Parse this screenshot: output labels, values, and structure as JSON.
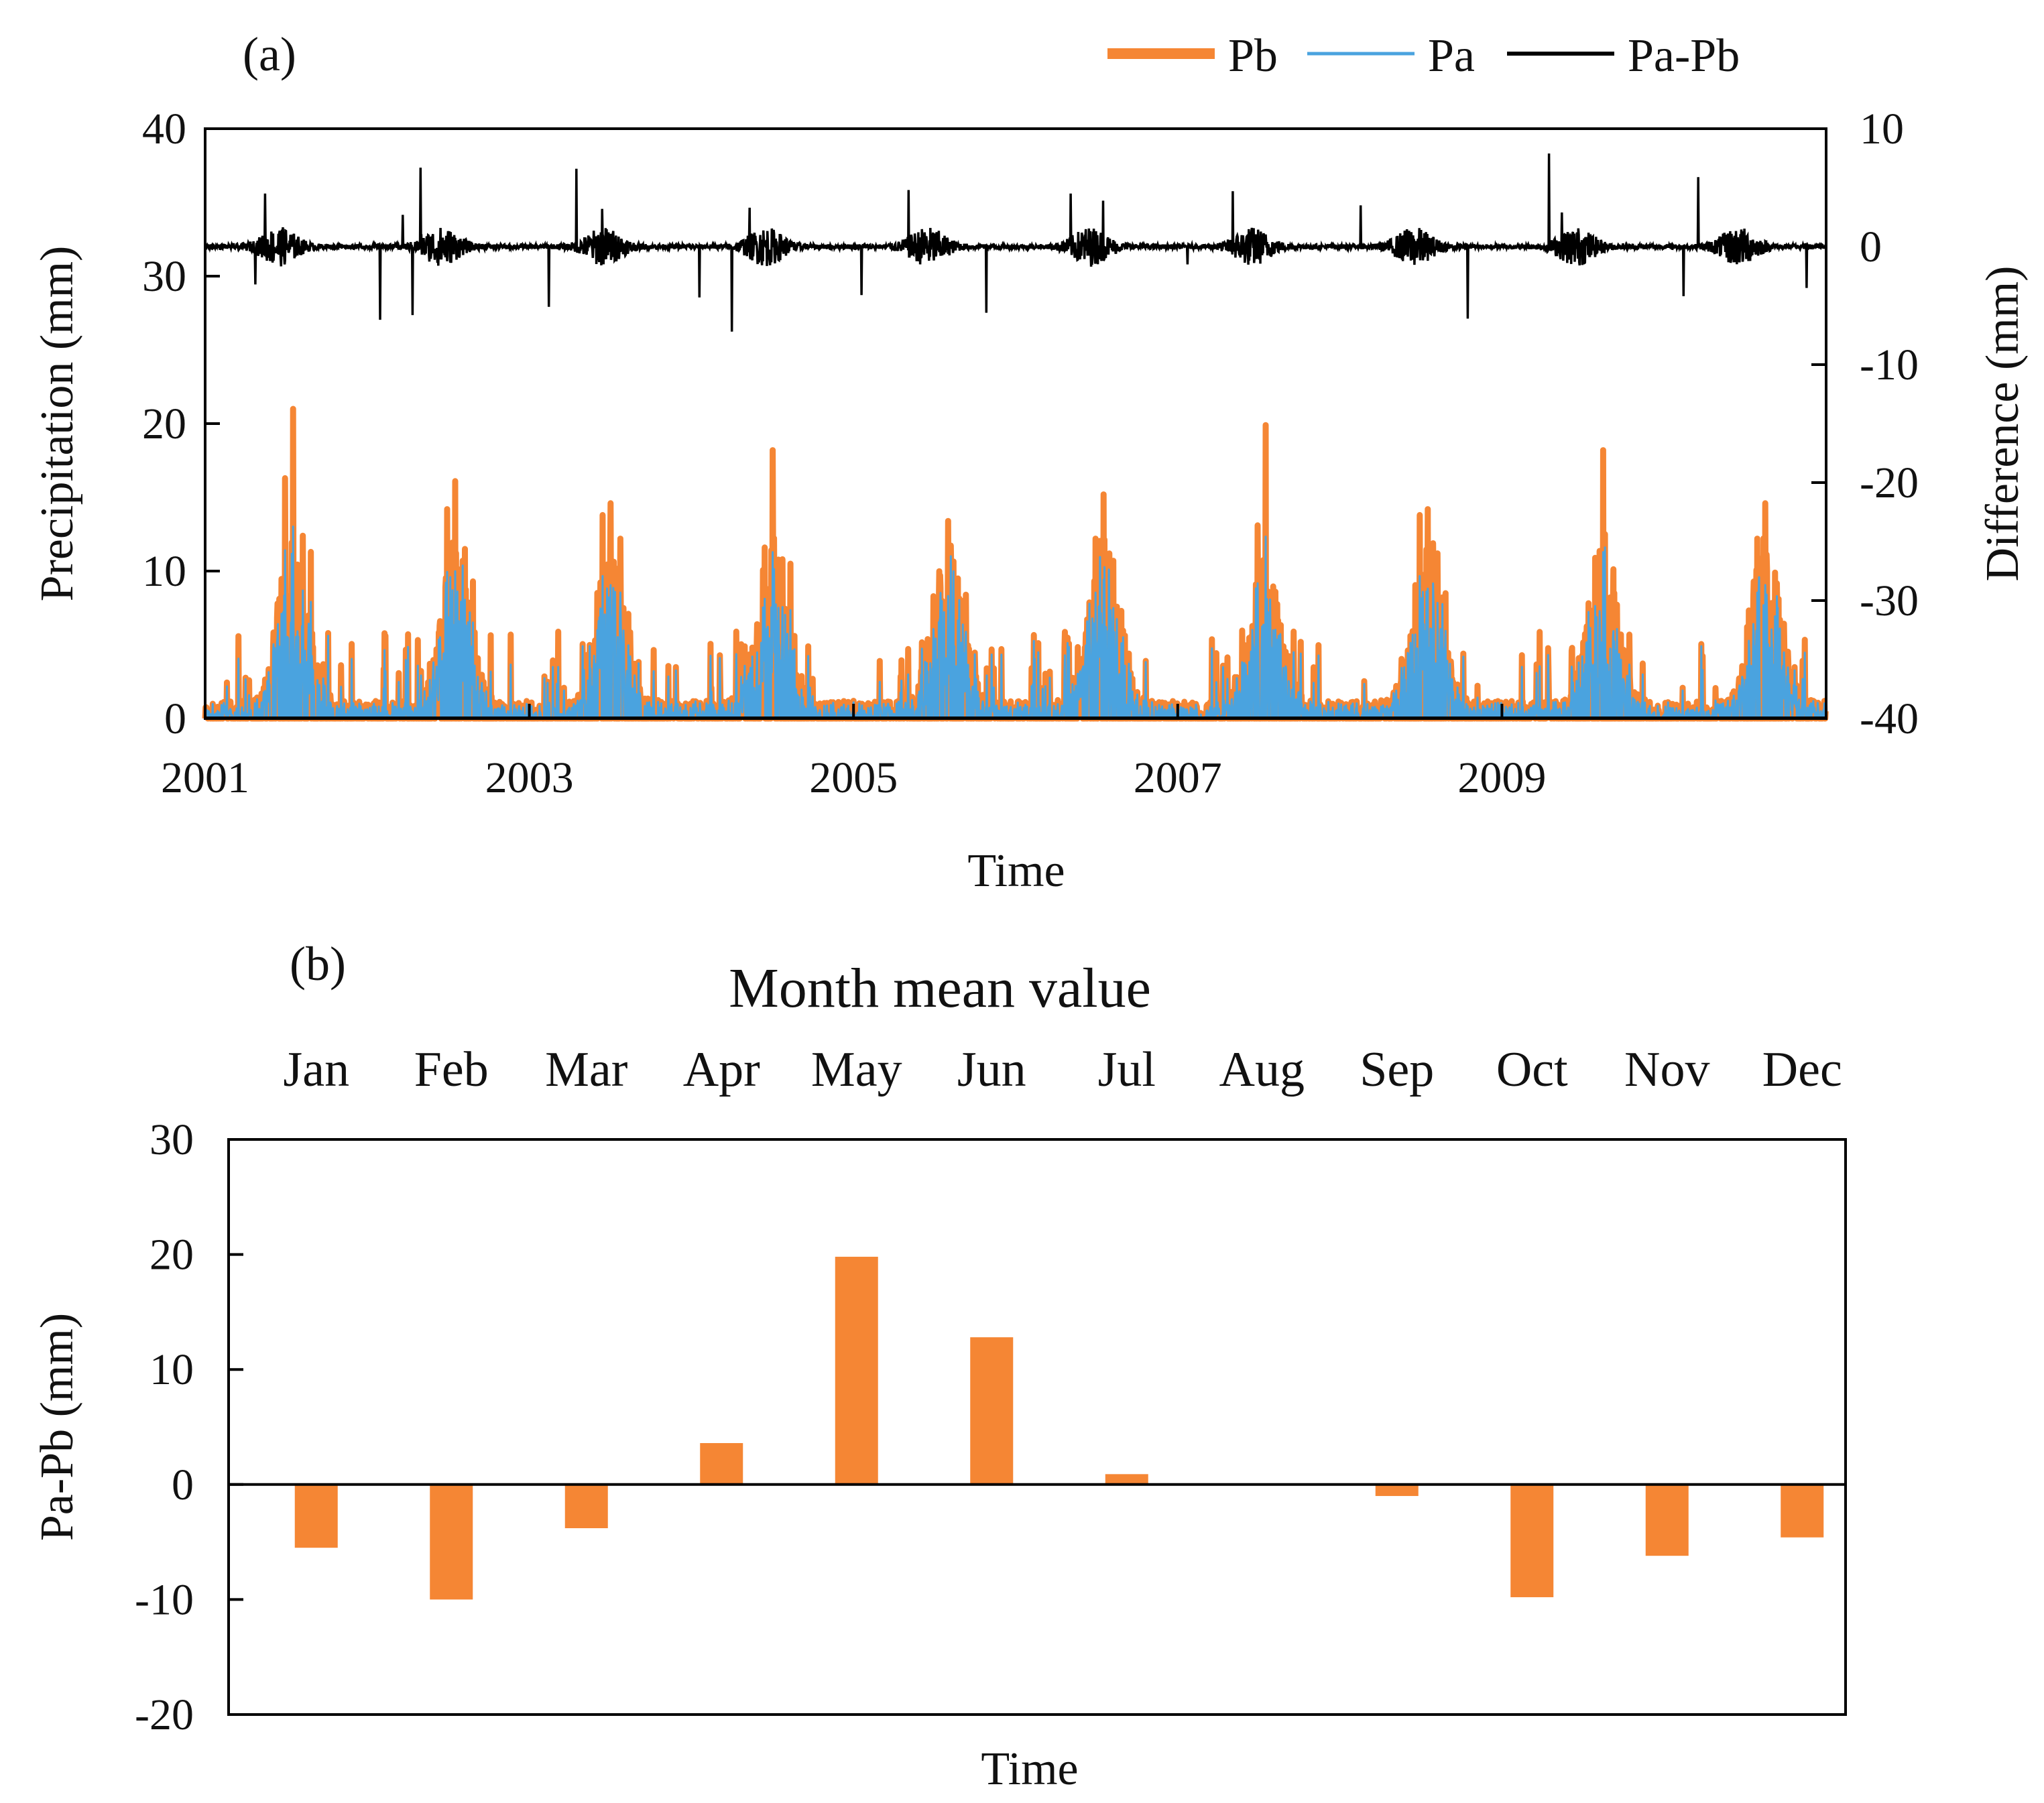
{
  "chart_data": [
    {
      "panel": "(a)",
      "type": "line",
      "title": "",
      "xlabel": "Time",
      "ylabel": "Precipitation (mm)",
      "ylabel_right": "Difference (mm)",
      "xlim": [
        2001,
        2011
      ],
      "ylim": [
        0,
        40
      ],
      "ylim_right": [
        -40,
        10
      ],
      "x_ticks": [
        "2001",
        "2003",
        "2005",
        "2007",
        "2009"
      ],
      "x_tick_values": [
        2001,
        2003,
        2005,
        2007,
        2009
      ],
      "y_ticks": [
        "0",
        "10",
        "20",
        "30",
        "40"
      ],
      "y_tick_values": [
        0,
        10,
        20,
        30,
        40
      ],
      "y_right_ticks": [
        "-40",
        "-30",
        "-20",
        "-10",
        "0",
        "10"
      ],
      "y_right_tick_values": [
        -40,
        -30,
        -20,
        -10,
        0,
        10
      ],
      "legend_position": "top-right",
      "legend": [
        "Pb",
        "Pa",
        "Pa-Pb"
      ],
      "daily_series_generated": true,
      "series": [
        {
          "name": "Pb",
          "color": "#F58634",
          "axis": "left",
          "annual_peaks": [
            {
              "year": 2001,
              "peak_month": 6.5,
              "peak": 21.0,
              "secondary": [
                16.3,
                12.4,
                11.3,
                7.8
              ]
            },
            {
              "year": 2002,
              "peak_month": 6.5,
              "peak": 16.1,
              "secondary": [
                14.2,
                11.5,
                9.3,
                6.3
              ]
            },
            {
              "year": 2003,
              "peak_month": 6.0,
              "peak": 14.6,
              "secondary": [
                13.8,
                12.2,
                7.1,
                5.3
              ]
            },
            {
              "year": 2004,
              "peak_month": 6.0,
              "peak": 18.2,
              "secondary": [
                11.6,
                10.8,
                10.5,
                6.4
              ]
            },
            {
              "year": 2005,
              "peak_month": 7.0,
              "peak": 13.4,
              "secondary": [
                9.7,
                9.5,
                8.4,
                4.8
              ]
            },
            {
              "year": 2006,
              "peak_month": 6.5,
              "peak": 15.2,
              "secondary": [
                12.2,
                10.7,
                7.3,
                6.2
              ]
            },
            {
              "year": 2007,
              "peak_month": 6.5,
              "peak": 19.9,
              "secondary": [
                13.1,
                8.6,
                4.9,
                3.8
              ]
            },
            {
              "year": 2008,
              "peak_month": 6.5,
              "peak": 14.2,
              "secondary": [
                13.8,
                11.2,
                8.5,
                5.6
              ]
            },
            {
              "year": 2009,
              "peak_month": 7.5,
              "peak": 18.2,
              "secondary": [
                10.9,
                7.8,
                5.7,
                4.0
              ]
            },
            {
              "year": 2010,
              "peak_month": 7.5,
              "peak": 14.6,
              "secondary": [
                12.2,
                9.9,
                5.1,
                4.2
              ]
            }
          ]
        },
        {
          "name": "Pa",
          "color": "#4AA3DF",
          "axis": "left",
          "description_value_scale": 0.8
        },
        {
          "name": "Pa-Pb",
          "color": "#000000",
          "axis": "right",
          "spikes": [
            {
              "x": 2001.37,
              "y": 4.5
            },
            {
              "x": 2001.31,
              "y": -3.2
            },
            {
              "x": 2002.08,
              "y": -6.2
            },
            {
              "x": 2002.22,
              "y": 2.7
            },
            {
              "x": 2002.33,
              "y": 6.7
            },
            {
              "x": 2002.28,
              "y": -5.8
            },
            {
              "x": 2003.29,
              "y": 6.6
            },
            {
              "x": 2003.12,
              "y": -5.1
            },
            {
              "x": 2003.45,
              "y": 3.2
            },
            {
              "x": 2004.05,
              "y": -4.3
            },
            {
              "x": 2004.25,
              "y": -7.2
            },
            {
              "x": 2004.36,
              "y": 3.3
            },
            {
              "x": 2005.34,
              "y": 4.8
            },
            {
              "x": 2005.05,
              "y": -4.1
            },
            {
              "x": 2005.82,
              "y": -5.6
            },
            {
              "x": 2006.34,
              "y": 4.5
            },
            {
              "x": 2006.54,
              "y": 3.9
            },
            {
              "x": 2007.34,
              "y": 4.7
            },
            {
              "x": 2007.06,
              "y": -1.5
            },
            {
              "x": 2008.13,
              "y": 3.5
            },
            {
              "x": 2008.79,
              "y": -6.1
            },
            {
              "x": 2009.29,
              "y": 7.9
            },
            {
              "x": 2009.37,
              "y": 2.9
            },
            {
              "x": 2010.21,
              "y": 5.9
            },
            {
              "x": 2010.12,
              "y": -4.2
            },
            {
              "x": 2010.88,
              "y": -3.5
            }
          ]
        }
      ]
    },
    {
      "panel": "(b)",
      "type": "bar",
      "title": "Month mean value",
      "xlabel": "Time",
      "ylabel": "Pa-Pb (mm)",
      "ylim": [
        -20,
        30
      ],
      "y_ticks": [
        "-20",
        "-10",
        "0",
        "10",
        "20",
        "30"
      ],
      "y_tick_values": [
        -20,
        -10,
        0,
        10,
        20,
        30
      ],
      "categories": [
        "Jan",
        "Feb",
        "Mar",
        "Apr",
        "May",
        "Jun",
        "Jul",
        "Aug",
        "Sep",
        "Oct",
        "Nov",
        "Dec"
      ],
      "values": [
        -5.5,
        -10.0,
        -3.8,
        3.6,
        19.8,
        12.8,
        0.9,
        0.0,
        -1.0,
        -9.8,
        -6.2,
        -4.6
      ],
      "color": "#F58634"
    }
  ]
}
